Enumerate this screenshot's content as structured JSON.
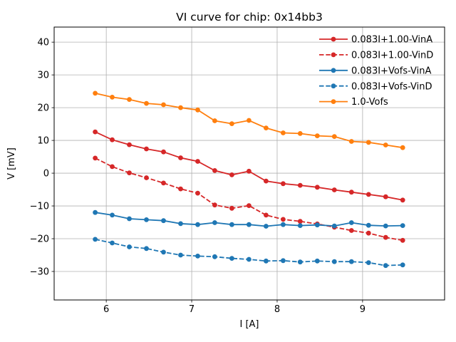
{
  "chart_data": {
    "type": "line",
    "title": "VI curve for chip: 0x14bb3",
    "xlabel": "I [A]",
    "ylabel": "V [mV]",
    "xlim": [
      5.39,
      9.96
    ],
    "ylim": [
      -38.7,
      44.6
    ],
    "xticks": [
      6,
      7,
      8,
      9
    ],
    "yticks": [
      -30,
      -20,
      -10,
      0,
      10,
      20,
      30,
      40
    ],
    "grid": true,
    "grid_color": "#b0b0b0",
    "axis_color": "#000000",
    "background_color": "#ffffff",
    "legend_position": "upper right",
    "legend_frame": false,
    "x": [
      5.87,
      6.07,
      6.27,
      6.47,
      6.67,
      6.87,
      7.07,
      7.27,
      7.47,
      7.67,
      7.87,
      8.07,
      8.27,
      8.47,
      8.67,
      8.87,
      9.07,
      9.27,
      9.47
    ],
    "series": [
      {
        "name": "0.083I+1.00-VinA",
        "color": "#d62728",
        "style": "solid",
        "marker": "circle",
        "values": [
          12.6,
          10.2,
          8.7,
          7.4,
          6.5,
          4.7,
          3.6,
          0.8,
          -0.5,
          0.6,
          -2.4,
          -3.2,
          -3.7,
          -4.3,
          -5.1,
          -5.8,
          -6.5,
          -7.2,
          -8.2
        ]
      },
      {
        "name": "0.083I+1.00-VinD",
        "color": "#d62728",
        "style": "dashed",
        "marker": "circle",
        "values": [
          4.6,
          2.0,
          0.1,
          -1.4,
          -3.0,
          -4.8,
          -6.1,
          -9.7,
          -10.7,
          -9.9,
          -12.8,
          -14.1,
          -14.7,
          -15.5,
          -16.5,
          -17.5,
          -18.3,
          -19.6,
          -20.5
        ]
      },
      {
        "name": "0.083I+Vofs-VinA",
        "color": "#1f77b4",
        "style": "solid",
        "marker": "circle",
        "values": [
          -12.0,
          -12.8,
          -13.9,
          -14.2,
          -14.5,
          -15.4,
          -15.7,
          -15.1,
          -15.7,
          -15.7,
          -16.2,
          -15.7,
          -16.0,
          -15.8,
          -16.1,
          -15.1,
          -15.9,
          -16.1,
          -16.0
        ]
      },
      {
        "name": "0.083I+Vofs-VinD",
        "color": "#1f77b4",
        "style": "dashed",
        "marker": "circle",
        "values": [
          -20.2,
          -21.3,
          -22.5,
          -23.0,
          -24.1,
          -25.0,
          -25.3,
          -25.5,
          -26.0,
          -26.3,
          -26.8,
          -26.7,
          -27.1,
          -26.8,
          -27.0,
          -27.0,
          -27.3,
          -28.2,
          -28.0
        ]
      },
      {
        "name": "1.0-Vofs",
        "color": "#ff7f0e",
        "style": "solid",
        "marker": "circle",
        "values": [
          24.4,
          23.2,
          22.5,
          21.3,
          20.9,
          20.0,
          19.3,
          16.0,
          15.1,
          16.1,
          13.8,
          12.3,
          12.1,
          11.4,
          11.2,
          9.7,
          9.4,
          8.6,
          7.8
        ]
      }
    ]
  }
}
